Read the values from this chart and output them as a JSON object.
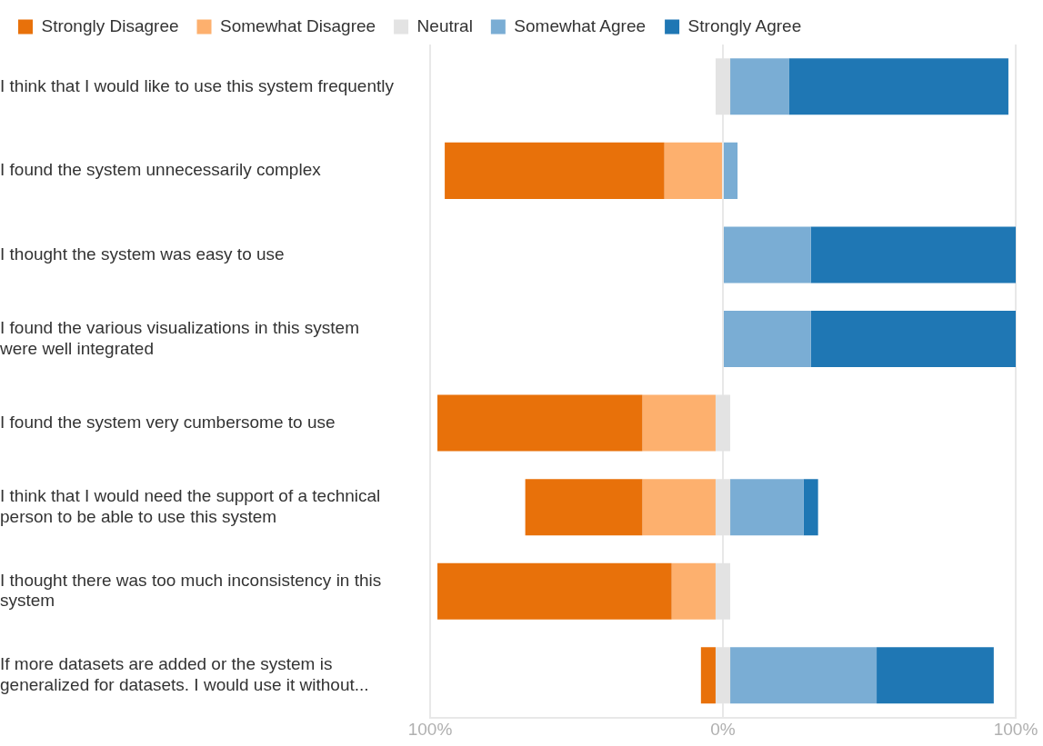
{
  "chart_data": {
    "type": "bar",
    "orientation": "horizontal",
    "categories": [
      "I think that I would like to use this system frequently",
      "I found the system unnecessarily complex",
      "I thought the system was easy to use",
      "I found the various visualizations in this system were well integrated",
      "I found the system very cumbersome to use",
      "I think that I would need the support of a technical person to be able to use this system",
      "I thought there was too much inconsistency in this system",
      "If more datasets are added or the system is generalized for datasets. I would use it without..."
    ],
    "series": [
      {
        "name": "Strongly Disagree",
        "color": "#e8710a",
        "values": [
          null,
          75,
          null,
          null,
          70,
          40,
          80,
          5
        ],
        "base": [
          null,
          -95,
          null,
          null,
          -97.5,
          -67.5,
          -97.5,
          -7.5
        ]
      },
      {
        "name": "Somewhat Disagree",
        "color": "#fdb06e",
        "values": [
          null,
          20,
          null,
          null,
          25,
          25,
          15,
          null
        ],
        "base": [
          null,
          -20,
          null,
          null,
          -27.5,
          -27.5,
          -17.5,
          null
        ]
      },
      {
        "name": "Neutral",
        "color": "#e3e3e3",
        "values": [
          5,
          null,
          null,
          null,
          5,
          5,
          5,
          5
        ],
        "base": [
          -2.5,
          null,
          null,
          null,
          -2.5,
          -2.5,
          -2.5,
          -2.5
        ]
      },
      {
        "name": "Somewhat Agree",
        "color": "#7aadd4",
        "values": [
          20,
          5,
          30,
          30,
          null,
          25,
          null,
          50
        ],
        "base": [
          2.5,
          0,
          0,
          0,
          null,
          2.5,
          null,
          2.5
        ]
      },
      {
        "name": "Strongly Agree",
        "color": "#1f77b4",
        "values": [
          75,
          null,
          70,
          70,
          null,
          5,
          null,
          40
        ],
        "base": [
          22.5,
          null,
          30,
          30,
          null,
          27.5,
          null,
          52.5
        ]
      }
    ],
    "xlim": [
      -100,
      100
    ],
    "xticks": [
      {
        "value": -100,
        "label": "100%"
      },
      {
        "value": 0,
        "label": "0%"
      },
      {
        "value": 100,
        "label": "100%"
      }
    ],
    "grid": "x",
    "legend": "top left"
  }
}
